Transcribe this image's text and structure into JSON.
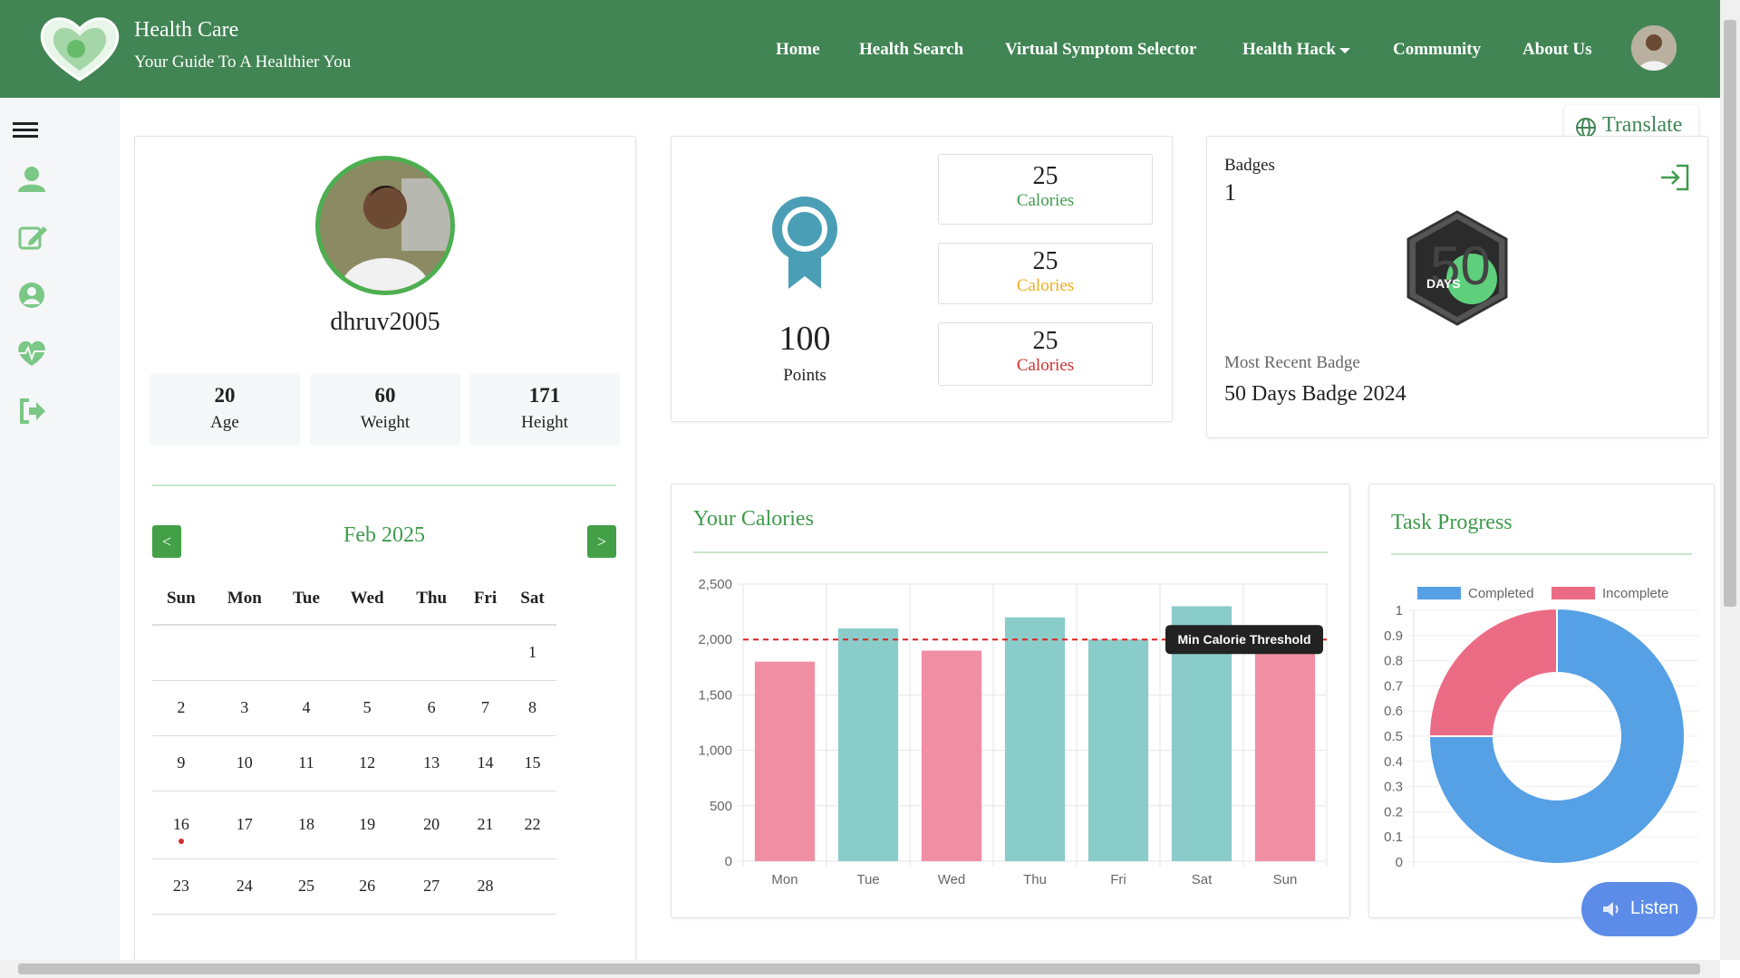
{
  "header": {
    "brand_title": "Health Care",
    "brand_subtitle": "Your Guide To A Healthier You",
    "nav": [
      {
        "label": "Home"
      },
      {
        "label": "Health Search"
      },
      {
        "label": "Virtual Symptom Selector"
      },
      {
        "label": "Health Hack"
      },
      {
        "label": "Community"
      },
      {
        "label": "About Us"
      }
    ],
    "brand_color": "#418554"
  },
  "sidebar": {
    "icons": [
      "menu-icon",
      "user-icon",
      "edit-icon",
      "user-circle-icon",
      "heartbeat-icon",
      "sign-out-icon"
    ]
  },
  "translate_label": "Translate",
  "profile": {
    "username": "dhruv2005",
    "stats": [
      {
        "value": "20",
        "label": "Age"
      },
      {
        "value": "60",
        "label": "Weight"
      },
      {
        "value": "171",
        "label": "Height"
      }
    ]
  },
  "calendar": {
    "prev_label": "<",
    "next_label": ">",
    "month": "Feb 2025",
    "weekdays": [
      "Sun",
      "Mon",
      "Tue",
      "Wed",
      "Thu",
      "Fri",
      "Sat"
    ],
    "weeks": [
      [
        "",
        "",
        "",
        "",
        "",
        "",
        "1"
      ],
      [
        "2",
        "3",
        "4",
        "5",
        "6",
        "7",
        "8"
      ],
      [
        "9",
        "10",
        "11",
        "12",
        "13",
        "14",
        "15"
      ],
      [
        "16",
        "17",
        "18",
        "19",
        "20",
        "21",
        "22"
      ],
      [
        "23",
        "24",
        "25",
        "26",
        "27",
        "28",
        ""
      ]
    ],
    "marked_day": "16"
  },
  "points": {
    "value": "100",
    "label": "Points",
    "calorie_cards": [
      {
        "value": "25",
        "label": "Calories",
        "color": "#3f9b4c"
      },
      {
        "value": "25",
        "label": "Calories",
        "color": "#f0ad1e"
      },
      {
        "value": "25",
        "label": "Calories",
        "color": "#d32f2f"
      }
    ]
  },
  "badges": {
    "title": "Badges",
    "count": "1",
    "badge_text": "DAYS",
    "badge_number": "50",
    "recent_label": "Most Recent Badge",
    "recent_value": "50 Days Badge 2024"
  },
  "calories_section": {
    "title": "Your Calories"
  },
  "task_section": {
    "title": "Task Progress"
  },
  "listen_label": "Listen",
  "chart_data": [
    {
      "type": "bar",
      "categories": [
        "Mon",
        "Tue",
        "Wed",
        "Thu",
        "Fri",
        "Sat",
        "Sun"
      ],
      "values": [
        1800,
        2100,
        1900,
        2200,
        2000,
        2300,
        1950
      ],
      "colors": [
        "#f08ea4",
        "#8accca",
        "#f08ea4",
        "#8accca",
        "#8accca",
        "#8accca",
        "#f08ea4"
      ],
      "ylim": [
        0,
        2500
      ],
      "yticks": [
        0,
        500,
        1000,
        1500,
        2000,
        2500
      ],
      "ytick_labels": [
        "0",
        "500",
        "1,000",
        "1,500",
        "2,000",
        "2,500"
      ],
      "threshold": {
        "value": 2000,
        "label": "Min Calorie Threshold",
        "color": "#e02020"
      },
      "grid": true
    },
    {
      "type": "pie",
      "labels": [
        "Completed",
        "Incomplete"
      ],
      "values": [
        0.75,
        0.25
      ],
      "colors": [
        "#56a0e5",
        "#ec6b84"
      ],
      "axis_ticks": [
        "0",
        "0.1",
        "0.2",
        "0.3",
        "0.4",
        "0.5",
        "0.6",
        "0.7",
        "0.8",
        "0.9",
        "1"
      ],
      "legend": "top"
    }
  ]
}
